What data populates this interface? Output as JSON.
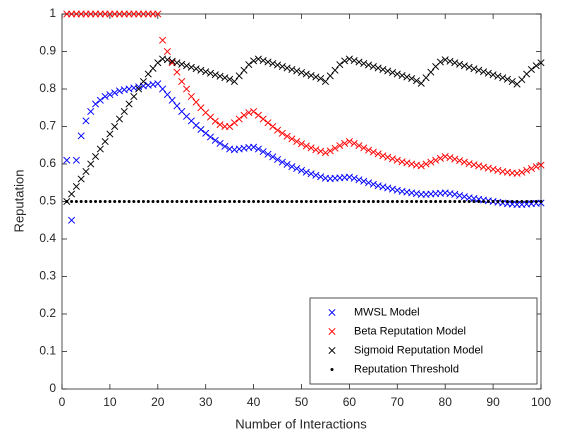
{
  "chart_data": {
    "type": "scatter",
    "xlabel": "Number of Interactions",
    "ylabel": "Reputation",
    "x": [
      1,
      2,
      3,
      4,
      5,
      6,
      7,
      8,
      9,
      10,
      11,
      12,
      13,
      14,
      15,
      16,
      17,
      18,
      19,
      20,
      21,
      22,
      23,
      24,
      25,
      26,
      27,
      28,
      29,
      30,
      31,
      32,
      33,
      34,
      35,
      36,
      37,
      38,
      39,
      40,
      41,
      42,
      43,
      44,
      45,
      46,
      47,
      48,
      49,
      50,
      51,
      52,
      53,
      54,
      55,
      56,
      57,
      58,
      59,
      60,
      61,
      62,
      63,
      64,
      65,
      66,
      67,
      68,
      69,
      70,
      71,
      72,
      73,
      74,
      75,
      76,
      77,
      78,
      79,
      80,
      81,
      82,
      83,
      84,
      85,
      86,
      87,
      88,
      89,
      90,
      91,
      92,
      93,
      94,
      95,
      96,
      97,
      98,
      99,
      100
    ],
    "series": [
      {
        "name": "MWSL Model",
        "color": "#0000ff",
        "marker": "x",
        "values": [
          0.61,
          0.45,
          0.61,
          0.675,
          0.715,
          0.74,
          0.76,
          0.77,
          0.78,
          0.785,
          0.79,
          0.795,
          0.798,
          0.8,
          0.803,
          0.806,
          0.808,
          0.81,
          0.812,
          0.814,
          0.8,
          0.785,
          0.77,
          0.755,
          0.74,
          0.727,
          0.715,
          0.703,
          0.692,
          0.682,
          0.672,
          0.663,
          0.655,
          0.647,
          0.64,
          0.638,
          0.64,
          0.642,
          0.644,
          0.645,
          0.64,
          0.633,
          0.626,
          0.619,
          0.612,
          0.605,
          0.599,
          0.593,
          0.588,
          0.583,
          0.578,
          0.574,
          0.57,
          0.566,
          0.562,
          0.561,
          0.562,
          0.563,
          0.564,
          0.565,
          0.562,
          0.558,
          0.554,
          0.55,
          0.546,
          0.542,
          0.539,
          0.536,
          0.533,
          0.53,
          0.527,
          0.525,
          0.523,
          0.521,
          0.519,
          0.519,
          0.52,
          0.521,
          0.522,
          0.523,
          0.521,
          0.519,
          0.516,
          0.513,
          0.51,
          0.508,
          0.506,
          0.504,
          0.502,
          0.5,
          0.498,
          0.496,
          0.494,
          0.493,
          0.492,
          0.492,
          0.493,
          0.494,
          0.495,
          0.496
        ]
      },
      {
        "name": "Beta Reputation Model",
        "color": "#ff0000",
        "marker": "x",
        "values": [
          1,
          1,
          1,
          1,
          1,
          1,
          1,
          1,
          1,
          1,
          1,
          1,
          1,
          1,
          1,
          1,
          1,
          1,
          1,
          1,
          0.93,
          0.9,
          0.87,
          0.845,
          0.82,
          0.8,
          0.78,
          0.765,
          0.75,
          0.737,
          0.725,
          0.714,
          0.705,
          0.7,
          0.7,
          0.71,
          0.72,
          0.73,
          0.737,
          0.74,
          0.73,
          0.72,
          0.71,
          0.7,
          0.69,
          0.682,
          0.674,
          0.667,
          0.66,
          0.654,
          0.648,
          0.643,
          0.638,
          0.634,
          0.63,
          0.635,
          0.642,
          0.649,
          0.655,
          0.66,
          0.655,
          0.649,
          0.643,
          0.637,
          0.632,
          0.627,
          0.622,
          0.618,
          0.614,
          0.61,
          0.606,
          0.603,
          0.6,
          0.597,
          0.595,
          0.6,
          0.605,
          0.61,
          0.615,
          0.62,
          0.617,
          0.613,
          0.609,
          0.605,
          0.601,
          0.598,
          0.595,
          0.592,
          0.589,
          0.586,
          0.583,
          0.58,
          0.578,
          0.576,
          0.575,
          0.578,
          0.583,
          0.588,
          0.593,
          0.597
        ]
      },
      {
        "name": "Sigmoid Reputation Model",
        "color": "#000000",
        "marker": "x",
        "values": [
          0.5,
          0.52,
          0.54,
          0.56,
          0.58,
          0.6,
          0.62,
          0.64,
          0.66,
          0.68,
          0.7,
          0.72,
          0.74,
          0.76,
          0.78,
          0.8,
          0.82,
          0.84,
          0.855,
          0.87,
          0.88,
          0.878,
          0.874,
          0.87,
          0.866,
          0.862,
          0.858,
          0.854,
          0.85,
          0.846,
          0.842,
          0.838,
          0.834,
          0.83,
          0.826,
          0.82,
          0.835,
          0.85,
          0.865,
          0.875,
          0.88,
          0.876,
          0.872,
          0.868,
          0.864,
          0.86,
          0.856,
          0.852,
          0.848,
          0.844,
          0.84,
          0.836,
          0.832,
          0.828,
          0.82,
          0.835,
          0.85,
          0.865,
          0.875,
          0.88,
          0.876,
          0.872,
          0.868,
          0.864,
          0.86,
          0.856,
          0.852,
          0.848,
          0.844,
          0.84,
          0.836,
          0.832,
          0.828,
          0.822,
          0.815,
          0.83,
          0.845,
          0.86,
          0.872,
          0.878,
          0.874,
          0.87,
          0.866,
          0.862,
          0.858,
          0.854,
          0.85,
          0.846,
          0.842,
          0.838,
          0.834,
          0.83,
          0.826,
          0.82,
          0.813,
          0.825,
          0.84,
          0.852,
          0.862,
          0.87
        ]
      },
      {
        "name": "Reputation Threshold",
        "color": "#000000",
        "marker": "dot",
        "values": [
          0.5,
          0.5,
          0.5,
          0.5,
          0.5,
          0.5,
          0.5,
          0.5,
          0.5,
          0.5,
          0.5,
          0.5,
          0.5,
          0.5,
          0.5,
          0.5,
          0.5,
          0.5,
          0.5,
          0.5,
          0.5,
          0.5,
          0.5,
          0.5,
          0.5,
          0.5,
          0.5,
          0.5,
          0.5,
          0.5,
          0.5,
          0.5,
          0.5,
          0.5,
          0.5,
          0.5,
          0.5,
          0.5,
          0.5,
          0.5,
          0.5,
          0.5,
          0.5,
          0.5,
          0.5,
          0.5,
          0.5,
          0.5,
          0.5,
          0.5,
          0.5,
          0.5,
          0.5,
          0.5,
          0.5,
          0.5,
          0.5,
          0.5,
          0.5,
          0.5,
          0.5,
          0.5,
          0.5,
          0.5,
          0.5,
          0.5,
          0.5,
          0.5,
          0.5,
          0.5,
          0.5,
          0.5,
          0.5,
          0.5,
          0.5,
          0.5,
          0.5,
          0.5,
          0.5,
          0.5,
          0.5,
          0.5,
          0.5,
          0.5,
          0.5,
          0.5,
          0.5,
          0.5,
          0.5,
          0.5,
          0.5,
          0.5,
          0.5,
          0.5,
          0.5,
          0.5,
          0.5,
          0.5,
          0.5,
          0.5
        ]
      }
    ],
    "xlim": [
      0,
      100
    ],
    "xticks": [
      0,
      10,
      20,
      30,
      40,
      50,
      60,
      70,
      80,
      90,
      100
    ],
    "ylim": [
      0,
      1
    ],
    "yticks": [
      0,
      0.1,
      0.2,
      0.3,
      0.4,
      0.5,
      0.6,
      0.7,
      0.8,
      0.9,
      1
    ],
    "grid": false,
    "legend": "lower right"
  }
}
